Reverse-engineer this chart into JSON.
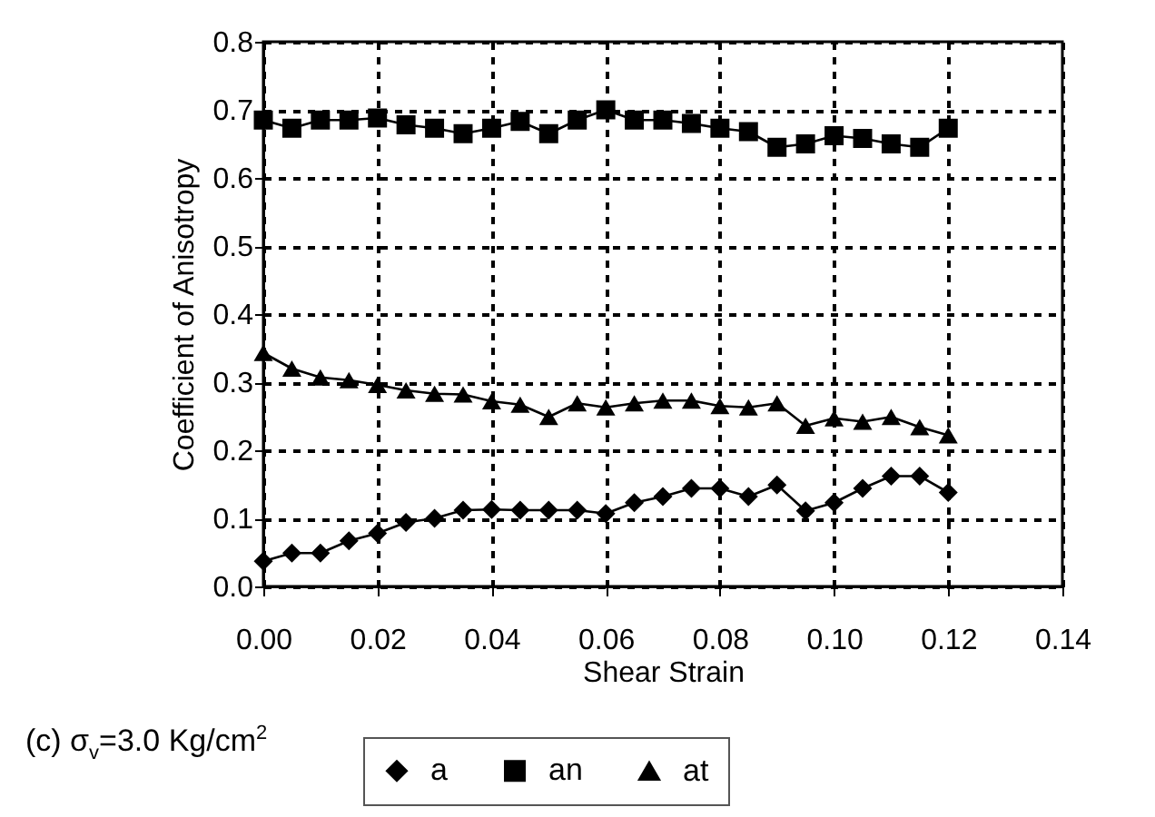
{
  "chart_data": {
    "type": "line",
    "xlabel": "Shear Strain",
    "ylabel": "Coefficient of Anisotropy",
    "annotations": [
      "(c) σ$_{v}$=3.0 Kg/cm$^{2}$"
    ],
    "x": [
      0,
      0.005,
      0.01,
      0.015,
      0.02,
      0.025,
      0.03,
      0.035,
      0.04,
      0.045,
      0.05,
      0.055,
      0.06,
      0.065,
      0.07,
      0.075,
      0.08,
      0.085,
      0.09,
      0.095,
      0.1,
      0.105,
      0.11,
      0.115,
      0.12
    ],
    "series": [
      {
        "name": "a",
        "color": "#000000",
        "marker": "diamond",
        "values": [
          0.037,
          0.049,
          0.049,
          0.067,
          0.078,
          0.094,
          0.1,
          0.112,
          0.113,
          0.112,
          0.112,
          0.112,
          0.107,
          0.123,
          0.132,
          0.144,
          0.144,
          0.132,
          0.149,
          0.111,
          0.123,
          0.144,
          0.162,
          0.162,
          0.138
        ]
      },
      {
        "name": "an",
        "color": "#000000",
        "marker": "square",
        "values": [
          0.685,
          0.673,
          0.685,
          0.685,
          0.688,
          0.678,
          0.673,
          0.665,
          0.673,
          0.683,
          0.665,
          0.685,
          0.7,
          0.685,
          0.685,
          0.68,
          0.673,
          0.668,
          0.645,
          0.65,
          0.662,
          0.658,
          0.65,
          0.645,
          0.673
        ]
      },
      {
        "name": "at",
        "color": "#000000",
        "marker": "triangle",
        "values": [
          0.343,
          0.32,
          0.307,
          0.303,
          0.296,
          0.288,
          0.283,
          0.282,
          0.272,
          0.267,
          0.249,
          0.269,
          0.263,
          0.269,
          0.273,
          0.273,
          0.265,
          0.263,
          0.269,
          0.236,
          0.247,
          0.242,
          0.249,
          0.234,
          0.222
        ]
      }
    ],
    "xlim": [
      0,
      0.14
    ],
    "xticks": [
      {
        "value": 0,
        "label": "0.00"
      },
      {
        "value": 0.02,
        "label": "0.02"
      },
      {
        "value": 0.04,
        "label": "0.04"
      },
      {
        "value": 0.06,
        "label": "0.06"
      },
      {
        "value": 0.08,
        "label": "0.08"
      },
      {
        "value": 0.1,
        "label": "0.10"
      },
      {
        "value": 0.12,
        "label": "0.12"
      },
      {
        "value": 0.14,
        "label": "0.14"
      }
    ],
    "ylim": [
      0,
      0.8
    ],
    "yticks": [
      {
        "value": 0,
        "label": "0.0"
      },
      {
        "value": 0.1,
        "label": "0.1"
      },
      {
        "value": 0.2,
        "label": "0.2"
      },
      {
        "value": 0.3,
        "label": "0.3"
      },
      {
        "value": 0.4,
        "label": "0.4"
      },
      {
        "value": 0.5,
        "label": "0.5"
      },
      {
        "value": 0.6,
        "label": "0.6"
      },
      {
        "value": 0.7,
        "label": "0.7"
      },
      {
        "value": 0.8,
        "label": "0.8"
      }
    ],
    "grid": true,
    "legend": "bottom",
    "line_style": "solid"
  }
}
